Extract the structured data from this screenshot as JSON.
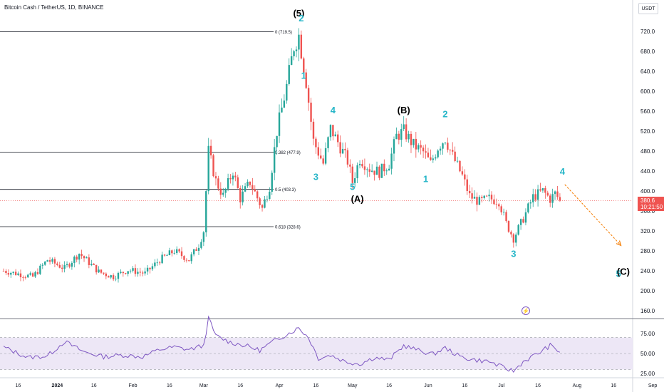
{
  "header": {
    "symbol_title": "Bitcoin Cash / TetherUS, 1D, BINANCE",
    "currency_button": "USDT"
  },
  "price_tag": {
    "price": "380.6",
    "countdown": "10:21:50"
  },
  "colors": {
    "up": "#26a69a",
    "down": "#ef5350",
    "wave_cyan": "#26b6c8",
    "wave_black": "#000000",
    "rsi": "#7e57c2",
    "rsi_band": "#ede7f6",
    "fib_line": "#131722",
    "arrow": "#f57c00",
    "price_line": "#ef5350"
  },
  "chart_data": [
    {
      "type": "candlestick",
      "title": "Bitcoin Cash / TetherUS, 1D, BINANCE",
      "ylim": [
        145,
        745
      ],
      "y_ticks": [
        "720.0",
        "680.0",
        "640.0",
        "600.0",
        "560.0",
        "520.0",
        "480.0",
        "440.0",
        "400.0",
        "360.0",
        "320.0",
        "280.0",
        "240.0",
        "200.0",
        "160.0"
      ],
      "x_ticks": [
        "16",
        "2024",
        "16",
        "Feb",
        "16",
        "Mar",
        "16",
        "Apr",
        "16",
        "May",
        "16",
        "Jun",
        "16",
        "Jul",
        "16",
        "Aug",
        "16",
        "Sep"
      ],
      "current_price": 380.6,
      "close_path": [
        [
          "2023-12-10",
          240
        ],
        [
          "2023-12-22",
          228
        ],
        [
          "2023-12-28",
          262
        ],
        [
          "2024-01-04",
          245
        ],
        [
          "2024-01-10",
          275
        ],
        [
          "2024-01-18",
          238
        ],
        [
          "2024-01-24",
          228
        ],
        [
          "2024-01-30",
          242
        ],
        [
          "2024-02-06",
          235
        ],
        [
          "2024-02-12",
          262
        ],
        [
          "2024-02-18",
          280
        ],
        [
          "2024-02-24",
          262
        ],
        [
          "2024-02-28",
          292
        ],
        [
          "2024-03-01",
          320
        ],
        [
          "2024-03-03",
          480
        ],
        [
          "2024-03-06",
          420
        ],
        [
          "2024-03-09",
          390
        ],
        [
          "2024-03-13",
          440
        ],
        [
          "2024-03-16",
          385
        ],
        [
          "2024-03-20",
          418
        ],
        [
          "2024-03-25",
          365
        ],
        [
          "2024-03-28",
          410
        ],
        [
          "2024-03-31",
          520
        ],
        [
          "2024-04-04",
          610
        ],
        [
          "2024-04-07",
          690
        ],
        [
          "2024-04-09",
          712
        ],
        [
          "2024-04-12",
          620
        ],
        [
          "2024-04-15",
          500
        ],
        [
          "2024-04-19",
          455
        ],
        [
          "2024-04-22",
          525
        ],
        [
          "2024-04-25",
          498
        ],
        [
          "2024-04-29",
          460
        ],
        [
          "2024-05-01",
          418
        ],
        [
          "2024-05-04",
          465
        ],
        [
          "2024-05-08",
          445
        ],
        [
          "2024-05-12",
          438
        ],
        [
          "2024-05-16",
          455
        ],
        [
          "2024-05-19",
          510
        ],
        [
          "2024-05-22",
          520
        ],
        [
          "2024-05-26",
          492
        ],
        [
          "2024-05-30",
          478
        ],
        [
          "2024-06-02",
          455
        ],
        [
          "2024-06-05",
          488
        ],
        [
          "2024-06-08",
          506
        ],
        [
          "2024-06-11",
          470
        ],
        [
          "2024-06-15",
          430
        ],
        [
          "2024-06-18",
          390
        ],
        [
          "2024-06-22",
          378
        ],
        [
          "2024-06-26",
          385
        ],
        [
          "2024-06-30",
          380
        ],
        [
          "2024-07-03",
          335
        ],
        [
          "2024-07-06",
          305
        ],
        [
          "2024-07-10",
          345
        ],
        [
          "2024-07-14",
          388
        ],
        [
          "2024-07-18",
          400
        ],
        [
          "2024-07-21",
          384
        ],
        [
          "2024-07-23",
          395
        ],
        [
          "2024-07-25",
          380.6
        ]
      ],
      "fib_levels": [
        {
          "label": "0 (719.5)",
          "value": 719.5
        },
        {
          "label": "0.382 (477.9)",
          "value": 477.9
        },
        {
          "label": "0.5 (403.3)",
          "value": 403.3
        },
        {
          "label": "0.618 (328.6)",
          "value": 328.6
        }
      ],
      "wave_labels": [
        {
          "text": "(5)",
          "date": "2024-04-09",
          "price": 750,
          "color": "black"
        },
        {
          "text": "2",
          "date": "2024-04-10",
          "price": 740,
          "color": "cyan"
        },
        {
          "text": "1",
          "date": "2024-04-11",
          "price": 625,
          "color": "cyan"
        },
        {
          "text": "4",
          "date": "2024-04-23",
          "price": 556,
          "color": "cyan"
        },
        {
          "text": "3",
          "date": "2024-04-16",
          "price": 422,
          "color": "cyan"
        },
        {
          "text": "5",
          "date": "2024-05-01",
          "price": 402,
          "color": "cyan"
        },
        {
          "text": "(A)",
          "date": "2024-05-03",
          "price": 378,
          "color": "black"
        },
        {
          "text": "(B)",
          "date": "2024-05-22",
          "price": 556,
          "color": "black"
        },
        {
          "text": "2",
          "date": "2024-06-08",
          "price": 548,
          "color": "cyan"
        },
        {
          "text": "1",
          "date": "2024-05-31",
          "price": 418,
          "color": "cyan"
        },
        {
          "text": "3",
          "date": "2024-07-06",
          "price": 268,
          "color": "cyan"
        },
        {
          "text": "4",
          "date": "2024-07-26",
          "price": 433,
          "color": "cyan"
        },
        {
          "text": "5",
          "date": "2024-08-18",
          "price": 228,
          "color": "cyan"
        },
        {
          "text": "(C)",
          "date": "2024-08-20",
          "price": 232,
          "color": "black"
        }
      ],
      "forecast_arrow": {
        "from": [
          "2024-07-27",
          413
        ],
        "to": [
          "2024-08-19",
          291
        ]
      }
    },
    {
      "type": "line",
      "title": "",
      "ylim": [
        18,
        100
      ],
      "y_ticks": [
        "75.00",
        "50.00",
        "25.00"
      ],
      "band": [
        30,
        70
      ],
      "x": [
        "2023-12-10",
        "2023-12-20",
        "2023-12-28",
        "2024-01-04",
        "2024-01-12",
        "2024-01-20",
        "2024-01-28",
        "2024-02-05",
        "2024-02-12",
        "2024-02-18",
        "2024-02-24",
        "2024-03-01",
        "2024-03-03",
        "2024-03-06",
        "2024-03-12",
        "2024-03-18",
        "2024-03-24",
        "2024-03-30",
        "2024-04-04",
        "2024-04-09",
        "2024-04-13",
        "2024-04-17",
        "2024-04-22",
        "2024-04-28",
        "2024-05-04",
        "2024-05-10",
        "2024-05-16",
        "2024-05-22",
        "2024-05-28",
        "2024-06-03",
        "2024-06-08",
        "2024-06-14",
        "2024-06-20",
        "2024-06-26",
        "2024-07-02",
        "2024-07-06",
        "2024-07-10",
        "2024-07-16",
        "2024-07-21",
        "2024-07-25"
      ],
      "values": [
        58,
        45,
        47,
        65,
        52,
        46,
        48,
        46,
        55,
        58,
        55,
        60,
        94,
        72,
        64,
        60,
        54,
        66,
        74,
        82,
        70,
        44,
        48,
        40,
        37,
        45,
        42,
        60,
        54,
        49,
        57,
        46,
        42,
        40,
        32,
        28,
        40,
        50,
        60,
        52
      ]
    }
  ]
}
